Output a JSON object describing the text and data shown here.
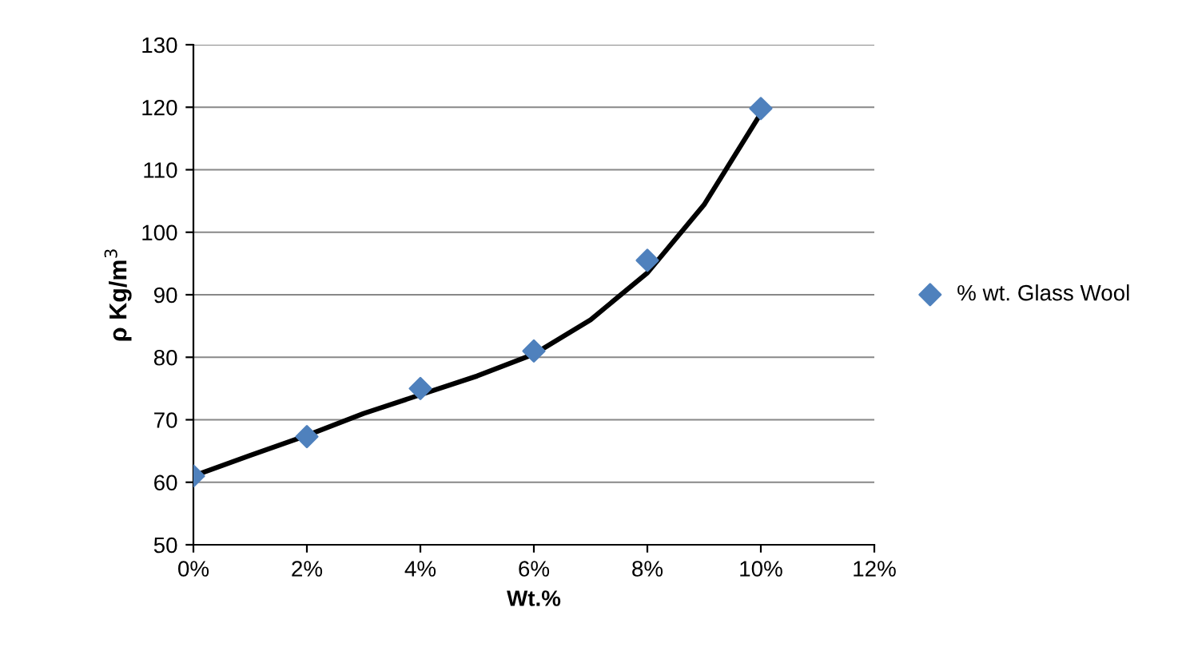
{
  "chart_data": {
    "type": "scatter",
    "xlabel": "Wt.%",
    "ylabel": "ρ Kg/m$^{3}$",
    "series": [
      {
        "name": "% wt. Glass Wool",
        "color": "#4f81bd",
        "marker": "diamond",
        "x": [
          0,
          2,
          4,
          6,
          8,
          10
        ],
        "values": [
          61,
          67.3,
          75,
          81,
          95.5,
          119.8
        ]
      },
      {
        "type": "line",
        "color": "#000000",
        "marker": "none",
        "line_style": "solid",
        "x": [
          0,
          1,
          2,
          3,
          4,
          5,
          6,
          7,
          8,
          9,
          10
        ],
        "values": [
          61,
          64.3,
          67.5,
          71,
          74,
          77,
          80.5,
          86,
          93.5,
          104.4,
          119
        ]
      }
    ],
    "xlim": [
      0,
      12
    ],
    "xticks": [
      {
        "value": 0,
        "label": "0%"
      },
      {
        "value": 2,
        "label": "2%"
      },
      {
        "value": 4,
        "label": "4%"
      },
      {
        "value": 6,
        "label": "6%"
      },
      {
        "value": 8,
        "label": "8%"
      },
      {
        "value": 10,
        "label": "10%"
      },
      {
        "value": 12,
        "label": "12%"
      }
    ],
    "ylim": [
      50,
      130
    ],
    "yticks": [
      50,
      60,
      70,
      80,
      90,
      100,
      110,
      120,
      130
    ],
    "grid": "y",
    "legend": "right"
  }
}
